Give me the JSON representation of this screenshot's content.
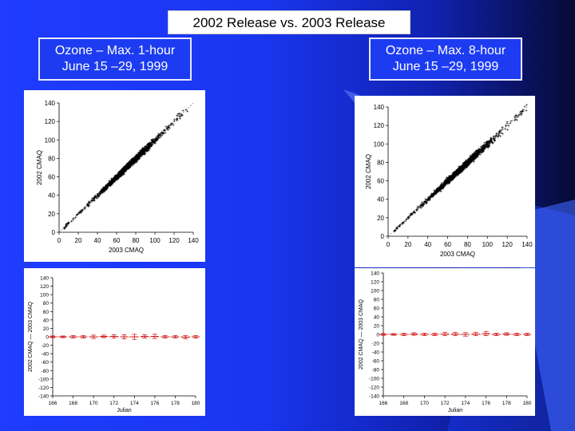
{
  "slide": {
    "title": "2002 Release vs. 2003 Release",
    "colors": {
      "background": "#1f3cff",
      "dark_edge": "#060a35",
      "marker": "#000000",
      "error_bars": "#cc0000"
    }
  },
  "panels": [
    {
      "heading_line1": "Ozone – Max. 1-hour",
      "heading_line2": "June 15 –29, 1999"
    },
    {
      "heading_line1": "Ozone – Max. 8-hour",
      "heading_line2": "June 15 –29, 1999"
    }
  ],
  "chart_data": [
    {
      "type": "scatter",
      "panel": "Ozone – Max. 1-hour",
      "xlabel": "2003 CMAQ",
      "ylabel": "2002 CMAQ",
      "xlim": [
        0,
        140
      ],
      "ylim": [
        0,
        140
      ],
      "xticks": [
        0,
        20,
        40,
        60,
        80,
        100,
        120,
        140
      ],
      "yticks": [
        0,
        20,
        40,
        60,
        80,
        100,
        120,
        140
      ],
      "reference_line": "1:1",
      "points_description_values": {
        "x_range": [
          5,
          135
        ],
        "relationship": "y ≈ x",
        "sample": [
          [
            5,
            5
          ],
          [
            20,
            19
          ],
          [
            40,
            41
          ],
          [
            60,
            60
          ],
          [
            80,
            81
          ],
          [
            100,
            99
          ],
          [
            120,
            121
          ],
          [
            135,
            137
          ]
        ]
      }
    },
    {
      "type": "scatter",
      "panel": "Ozone – Max. 8-hour",
      "xlabel": "2003 CMAQ",
      "ylabel": "2002 CMAQ",
      "xlim": [
        0,
        140
      ],
      "ylim": [
        0,
        140
      ],
      "xticks": [
        0,
        20,
        40,
        60,
        80,
        100,
        120,
        140
      ],
      "yticks": [
        0,
        20,
        40,
        60,
        80,
        100,
        120,
        140
      ],
      "reference_line": "1:1",
      "points_description_values": {
        "x_range": [
          5,
          140
        ],
        "relationship": "y ≈ x",
        "sample": [
          [
            5,
            5
          ],
          [
            20,
            19
          ],
          [
            40,
            41
          ],
          [
            60,
            60
          ],
          [
            80,
            79
          ],
          [
            100,
            101
          ],
          [
            120,
            121
          ],
          [
            140,
            139
          ]
        ]
      }
    },
    {
      "type": "line",
      "panel": "Ozone – Max. 1-hour",
      "xlabel": "Julian",
      "ylabel": "2002 CMAQ — 2003 CMAQ",
      "xlim": [
        166,
        180
      ],
      "ylim": [
        -140,
        140
      ],
      "xticks": [
        166,
        168,
        170,
        172,
        174,
        176,
        178,
        180
      ],
      "yticks": [
        140,
        120,
        100,
        80,
        60,
        40,
        20,
        0,
        -20,
        -40,
        -60,
        -80,
        -100,
        -120,
        -140
      ],
      "x": [
        166,
        167,
        168,
        169,
        170,
        171,
        172,
        173,
        174,
        175,
        176,
        177,
        178,
        179,
        180
      ],
      "mean": [
        0,
        0,
        0,
        0,
        0,
        1,
        1,
        0,
        0,
        1,
        1,
        0,
        0,
        -1,
        0
      ],
      "whisker": [
        2,
        2,
        3,
        3,
        4,
        3,
        4,
        5,
        6,
        4,
        5,
        3,
        3,
        4,
        3
      ]
    },
    {
      "type": "line",
      "panel": "Ozone – Max. 8-hour",
      "xlabel": "Julian",
      "ylabel": "2002 CMAQ — 2003 CMAQ",
      "xlim": [
        166,
        180
      ],
      "ylim": [
        -140,
        140
      ],
      "xticks": [
        166,
        168,
        170,
        172,
        174,
        176,
        178,
        180
      ],
      "yticks": [
        140,
        120,
        100,
        80,
        60,
        40,
        20,
        0,
        -20,
        -40,
        -60,
        -80,
        -100,
        -120,
        -140
      ],
      "x": [
        166,
        167,
        168,
        169,
        170,
        171,
        172,
        173,
        174,
        175,
        176,
        177,
        178,
        179,
        180
      ],
      "mean": [
        0,
        0,
        0,
        1,
        0,
        0,
        1,
        1,
        0,
        1,
        2,
        0,
        1,
        0,
        0
      ],
      "whisker": [
        2,
        2,
        3,
        3,
        3,
        3,
        4,
        4,
        4,
        4,
        5,
        3,
        3,
        3,
        3
      ]
    }
  ]
}
